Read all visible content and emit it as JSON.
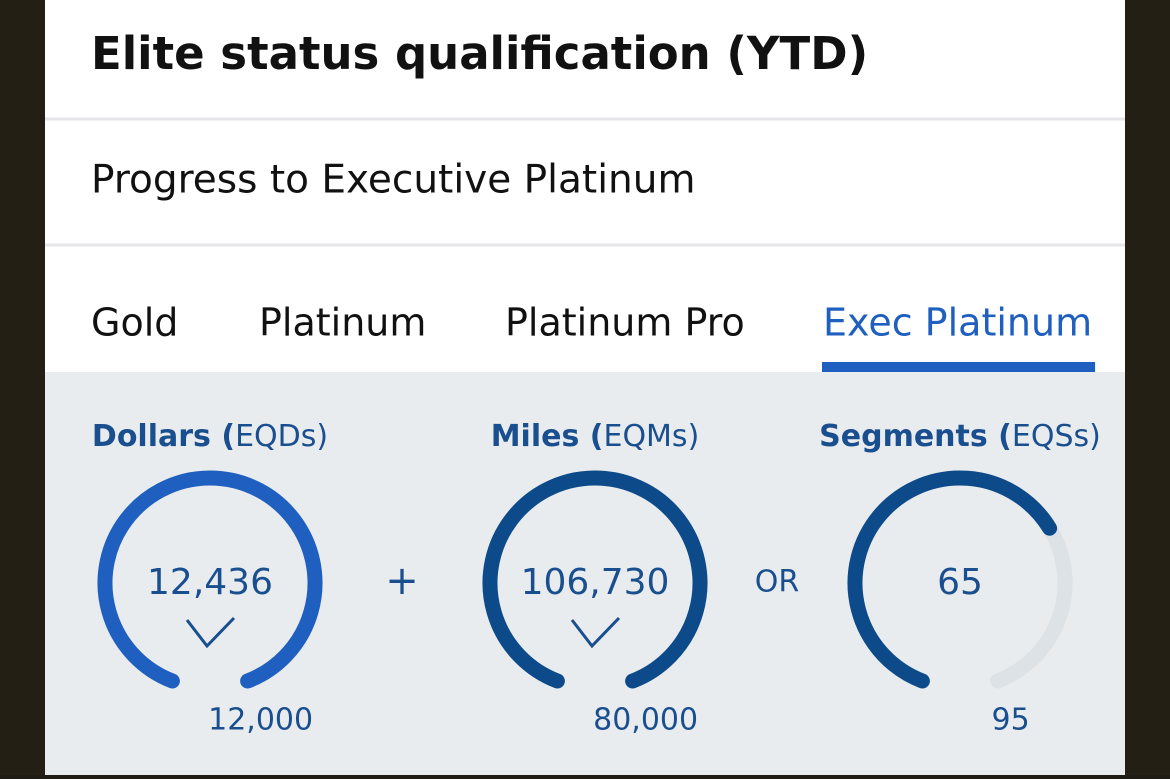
{
  "header": {
    "title": "Elite status qualification (YTD)",
    "subtitle": "Progress to Executive Platinum"
  },
  "tabs": {
    "items": [
      "Gold",
      "Platinum",
      "Platinum Pro",
      "Exec Platinum"
    ],
    "active": 3
  },
  "gauges": [
    {
      "name": "Dollars (",
      "unit": "EQDs)",
      "current": {
        "value": 12436,
        "label": "12,436"
      },
      "target": {
        "value": 12000,
        "label": "12,000"
      },
      "color": "#1f5fbf"
    },
    {
      "name": "Miles (",
      "unit": "EQMs)",
      "current": {
        "value": 106730,
        "label": "106,730"
      },
      "target": {
        "value": 80000,
        "label": "80,000"
      },
      "color": "#0d4a8a"
    },
    {
      "name": "Segments (",
      "unit": "EQSs)",
      "current": {
        "value": 65,
        "label": "65"
      },
      "target": {
        "value": 95,
        "label": "95"
      },
      "color": "#0d4a8a"
    }
  ],
  "connectors": [
    "+",
    "OR"
  ]
}
